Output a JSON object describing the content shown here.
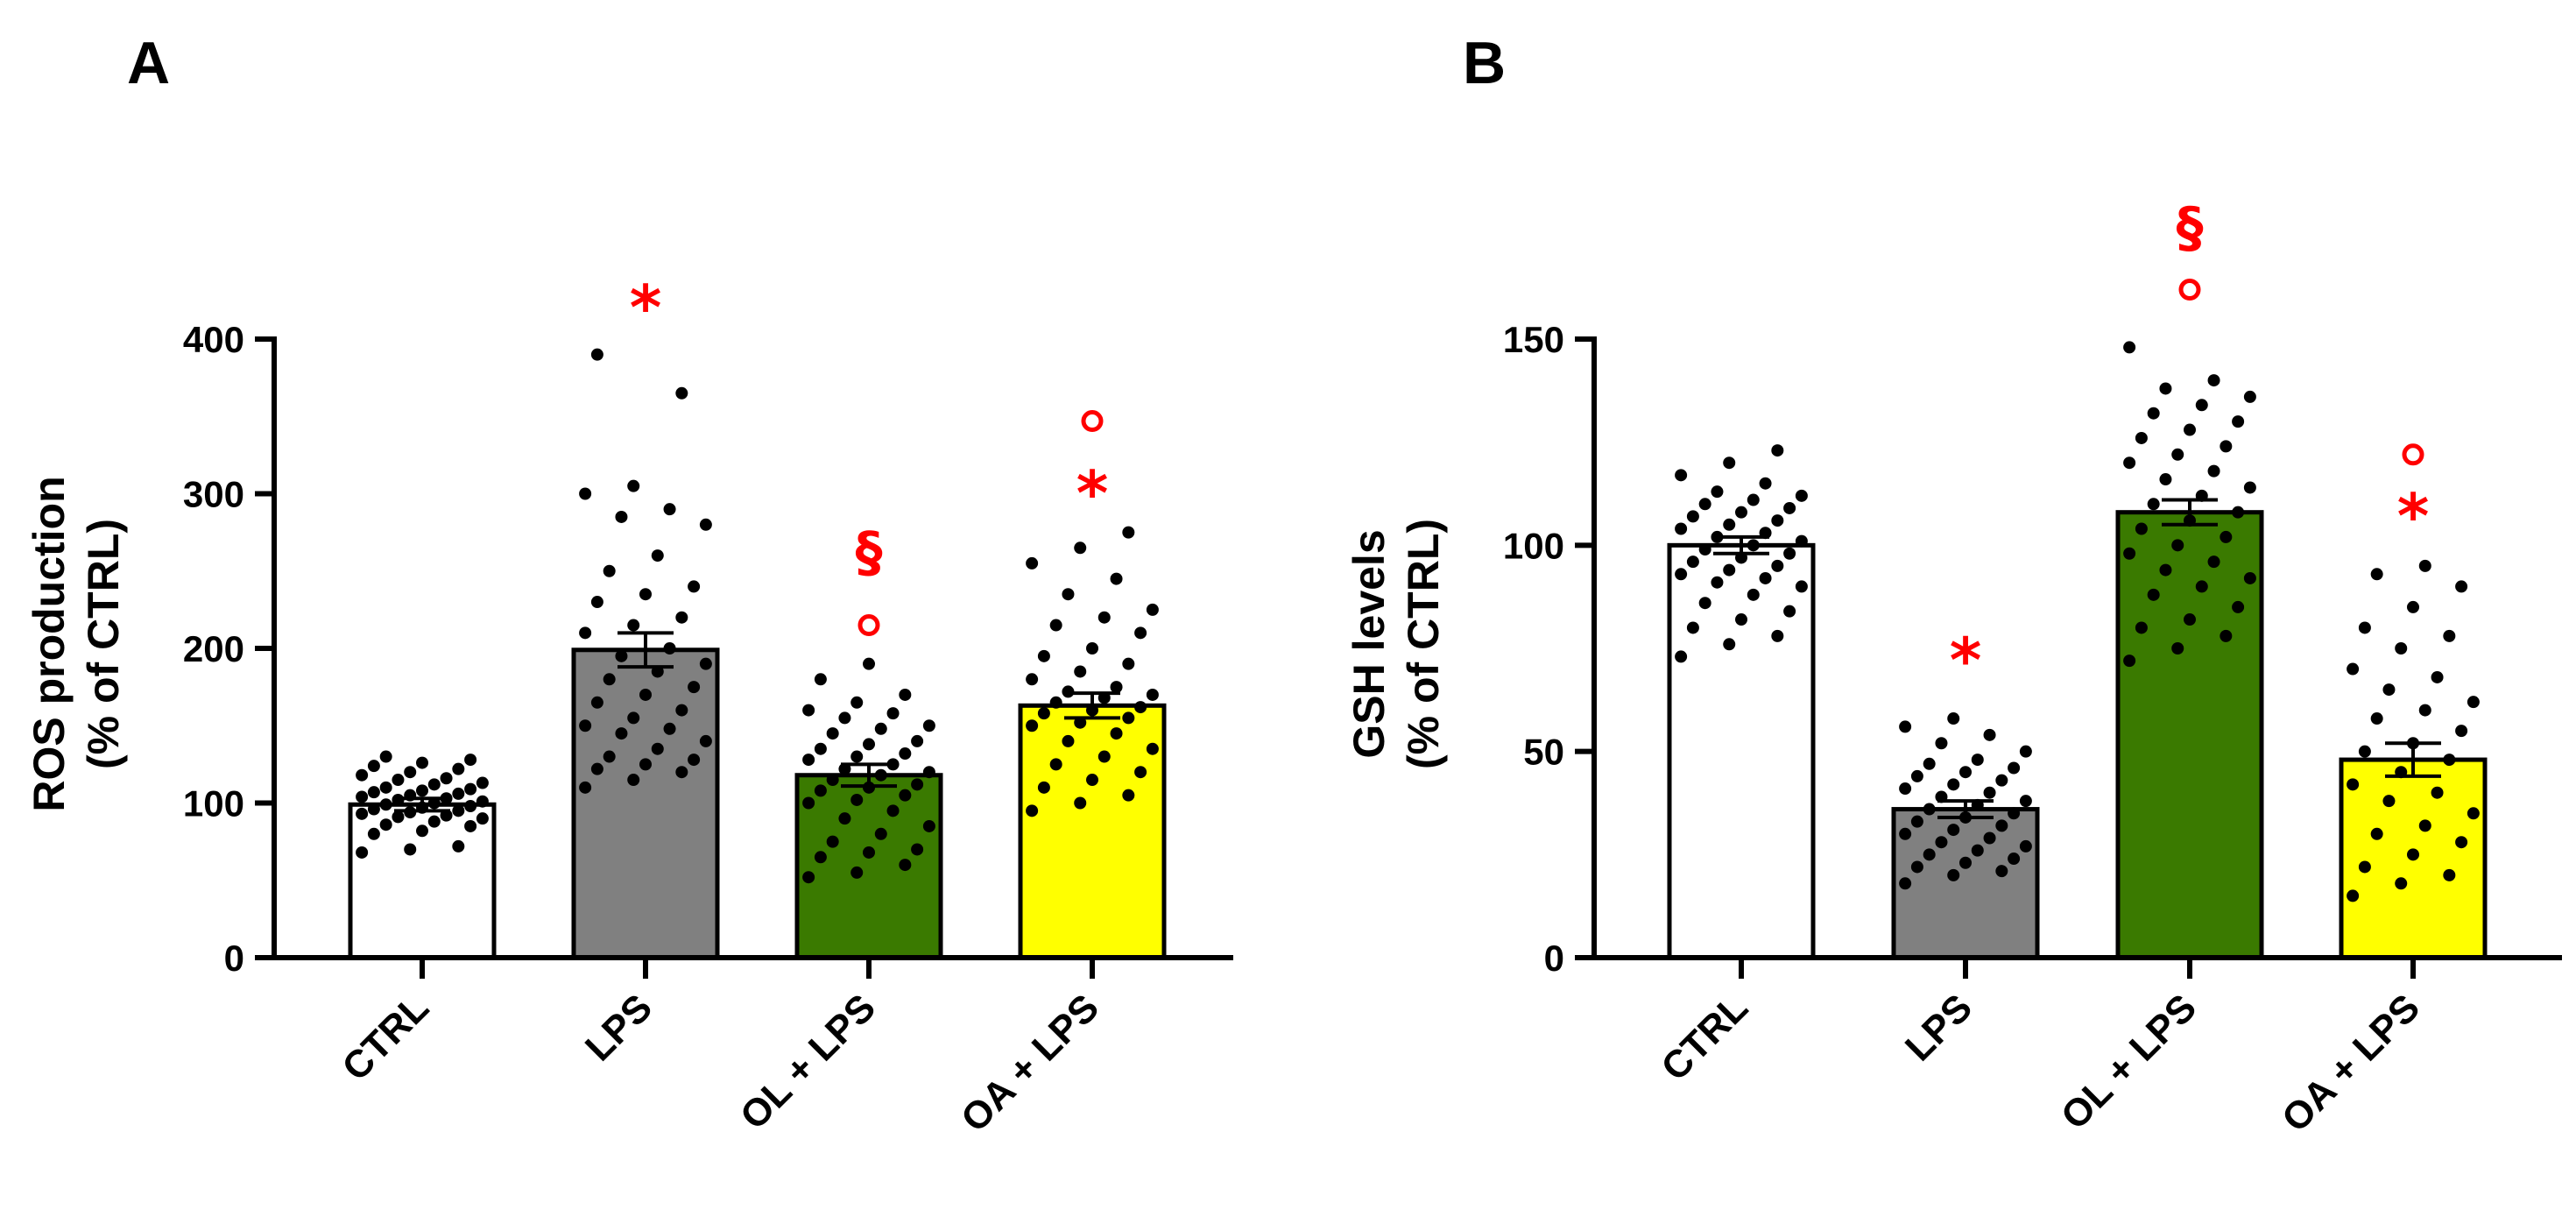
{
  "chart_data": [
    {
      "panel": "A",
      "type": "bar",
      "ylabel_line1": "ROS production",
      "ylabel_line2": "(% of CTRL)",
      "ylim": [
        0,
        400
      ],
      "yticks": [
        "0",
        "100",
        "200",
        "300",
        "400"
      ],
      "ytick_values": [
        0,
        100,
        200,
        300,
        400
      ],
      "categories": [
        "CTRL",
        "LPS",
        "OL + LPS",
        "OA + LPS"
      ],
      "colors": [
        "#ffffff",
        "#808080",
        "#3a7a00",
        "#ffff00"
      ],
      "values": [
        99,
        199,
        118,
        163
      ],
      "sem": [
        4,
        11,
        7,
        8
      ],
      "significance": [
        [],
        [
          {
            "symbol": "*",
            "value": 428
          }
        ],
        [
          {
            "symbol": "°",
            "value": 215
          },
          {
            "symbol": "§",
            "value": 265
          }
        ],
        [
          {
            "symbol": "*",
            "value": 308
          },
          {
            "symbol": "°",
            "value": 347
          }
        ]
      ],
      "points": [
        [
          68,
          70,
          72,
          80,
          82,
          85,
          86,
          88,
          90,
          91,
          92,
          93,
          94,
          95,
          96,
          97,
          98,
          99,
          100,
          101,
          102,
          103,
          104,
          105,
          106,
          107,
          108,
          109,
          110,
          112,
          113,
          115,
          116,
          118,
          120,
          122,
          124,
          126,
          128,
          130
        ],
        [
          110,
          115,
          120,
          122,
          125,
          128,
          130,
          135,
          140,
          145,
          148,
          150,
          155,
          160,
          165,
          170,
          175,
          180,
          185,
          190,
          195,
          200,
          210,
          215,
          220,
          230,
          235,
          240,
          250,
          260,
          280,
          285,
          290,
          300,
          305,
          365,
          390
        ],
        [
          52,
          55,
          60,
          65,
          68,
          70,
          75,
          80,
          85,
          90,
          95,
          100,
          102,
          105,
          108,
          110,
          112,
          115,
          118,
          120,
          122,
          125,
          128,
          130,
          132,
          135,
          138,
          140,
          145,
          148,
          150,
          155,
          158,
          160,
          165,
          170,
          180,
          190
        ],
        [
          95,
          100,
          105,
          110,
          115,
          120,
          125,
          130,
          135,
          140,
          145,
          150,
          152,
          155,
          158,
          160,
          162,
          165,
          168,
          170,
          172,
          175,
          180,
          185,
          190,
          195,
          200,
          210,
          215,
          220,
          225,
          235,
          245,
          255,
          265,
          275
        ]
      ]
    },
    {
      "panel": "B",
      "type": "bar",
      "ylabel_line1": "GSH levels",
      "ylabel_line2": "(% of CTRL)",
      "ylim": [
        0,
        150
      ],
      "yticks": [
        "0",
        "50",
        "100",
        "150"
      ],
      "ytick_values": [
        0,
        50,
        100,
        150
      ],
      "categories": [
        "CTRL",
        "LPS",
        "OL + LPS",
        "OA + LPS"
      ],
      "colors": [
        "#ffffff",
        "#808080",
        "#3a7a00",
        "#ffff00"
      ],
      "values": [
        100,
        36,
        108,
        48
      ],
      "sem": [
        2,
        2,
        3,
        4
      ],
      "significance": [
        [],
        [
          {
            "symbol": "*",
            "value": 75
          }
        ],
        [
          {
            "symbol": "°",
            "value": 162
          },
          {
            "symbol": "§",
            "value": 178
          }
        ],
        [
          {
            "symbol": "*",
            "value": 110
          },
          {
            "symbol": "°",
            "value": 122
          }
        ]
      ],
      "points": [
        [
          73,
          76,
          78,
          80,
          82,
          84,
          86,
          88,
          90,
          91,
          92,
          93,
          94,
          95,
          96,
          97,
          98,
          99,
          100,
          101,
          102,
          103,
          104,
          105,
          106,
          107,
          108,
          109,
          110,
          111,
          112,
          113,
          115,
          117,
          120,
          123
        ],
        [
          18,
          20,
          21,
          22,
          23,
          24,
          25,
          26,
          27,
          28,
          29,
          30,
          31,
          32,
          33,
          34,
          35,
          36,
          37,
          38,
          39,
          40,
          41,
          42,
          43,
          44,
          45,
          46,
          47,
          48,
          50,
          52,
          54,
          56,
          58
        ],
        [
          72,
          75,
          78,
          80,
          82,
          85,
          88,
          90,
          92,
          94,
          96,
          98,
          100,
          102,
          104,
          106,
          108,
          110,
          112,
          114,
          116,
          118,
          120,
          122,
          124,
          126,
          128,
          130,
          132,
          134,
          136,
          138,
          140,
          148
        ],
        [
          15,
          18,
          20,
          22,
          25,
          28,
          30,
          32,
          35,
          38,
          40,
          42,
          45,
          48,
          50,
          52,
          55,
          58,
          60,
          62,
          65,
          68,
          70,
          75,
          78,
          80,
          85,
          90,
          93,
          95
        ]
      ]
    }
  ],
  "panels": {
    "a": {
      "letter": "A",
      "ylabel_line1": "ROS production",
      "ylabel_line2": "(% of CTRL)",
      "yticks": [
        "0",
        "100",
        "200",
        "300",
        "400"
      ],
      "categories": [
        "CTRL",
        "LPS",
        "OL + LPS",
        "OA + LPS"
      ]
    },
    "b": {
      "letter": "B",
      "ylabel_line1": "GSH levels",
      "ylabel_line2": "(% of CTRL)",
      "yticks": [
        "0",
        "50",
        "100",
        "150"
      ],
      "categories": [
        "CTRL",
        "LPS",
        "OL + LPS",
        "OA + LPS"
      ]
    }
  }
}
